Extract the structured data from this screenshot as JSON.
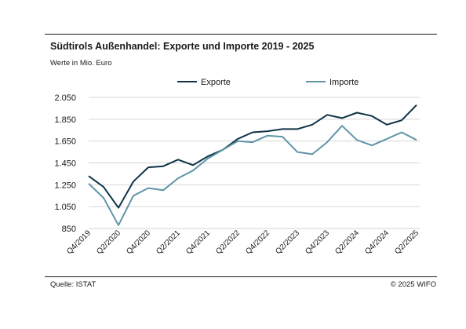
{
  "colors": {
    "exporte": "#0f3347",
    "importe": "#5f95a8",
    "rule": "#1a1a1a",
    "text": "#1a1a1a"
  },
  "header": {
    "title": "Südtirols Außenhandel: Exporte und Importe 2019 - 2025",
    "subtitle": "Werte in Mio. Euro"
  },
  "footer": {
    "source": "Quelle: ISTAT",
    "copyright": "© 2025 WIFO"
  },
  "chart_data": {
    "type": "line",
    "title": "Südtirols Außenhandel: Exporte und Importe 2019 - 2025",
    "subtitle": "Werte in Mio. Euro",
    "xlabel": "",
    "ylabel": "",
    "categories": [
      "Q4/2019",
      "Q1/2020",
      "Q2/2020",
      "Q3/2020",
      "Q4/2020",
      "Q1/2021",
      "Q2/2021",
      "Q3/2021",
      "Q4/2021",
      "Q1/2022",
      "Q2/2022",
      "Q3/2022",
      "Q4/2022",
      "Q1/2023",
      "Q2/2023",
      "Q3/2023",
      "Q4/2023",
      "Q1/2024",
      "Q2/2024",
      "Q3/2024",
      "Q4/2024",
      "Q1/2025",
      "Q2/2025"
    ],
    "x_tick_labels": [
      "Q4/2019",
      "Q2/2020",
      "Q4/2020",
      "Q2/2021",
      "Q4/2021",
      "Q2/2022",
      "Q4/2022",
      "Q2/2023",
      "Q4/2023",
      "Q2/2024",
      "Q4/2024",
      "Q2/2025"
    ],
    "ylim": [
      850,
      2050
    ],
    "y_ticks": [
      850,
      1050,
      1250,
      1450,
      1650,
      1850,
      2050
    ],
    "y_tick_labels": [
      "850",
      "1.050",
      "1.250",
      "1.450",
      "1.650",
      "1.850",
      "2.050"
    ],
    "grid": true,
    "legend_position": "top-center",
    "series": [
      {
        "name": "Exporte",
        "values": [
          1330,
          1230,
          1040,
          1280,
          1410,
          1420,
          1480,
          1430,
          1510,
          1570,
          1670,
          1730,
          1740,
          1760,
          1760,
          1800,
          1890,
          1860,
          1910,
          1880,
          1800,
          1840,
          1980
        ]
      },
      {
        "name": "Importe",
        "values": [
          1260,
          1130,
          880,
          1150,
          1220,
          1200,
          1310,
          1380,
          1490,
          1570,
          1650,
          1640,
          1700,
          1690,
          1550,
          1530,
          1640,
          1790,
          1660,
          1610,
          1670,
          1730,
          1660
        ]
      }
    ]
  }
}
